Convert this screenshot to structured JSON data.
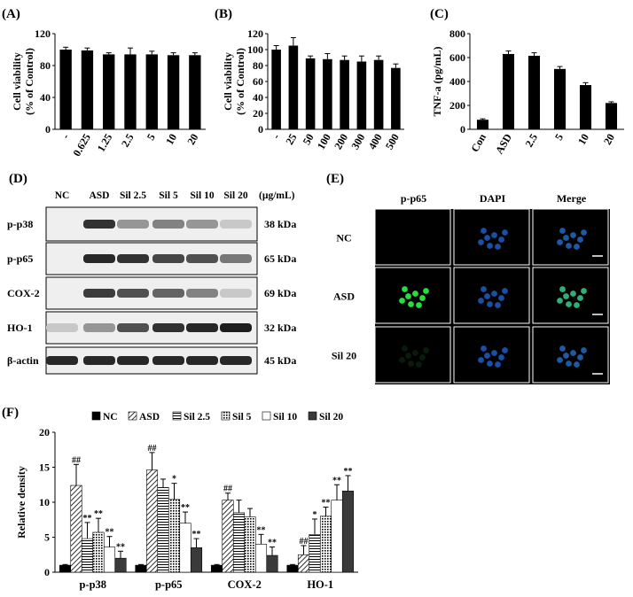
{
  "panel_labels": {
    "A": "(A)",
    "B": "(B)",
    "C": "(C)",
    "D": "(D)",
    "E": "(E)",
    "F": "(F)"
  },
  "chart_data": [
    {
      "panel": "(A)",
      "type": "bar",
      "ylabel": [
        "Cell viability",
        "(% of Control)"
      ],
      "ylim": [
        0,
        120
      ],
      "yticks": [
        0,
        40,
        80,
        120
      ],
      "categories": [
        "-",
        "0.625",
        "1.25",
        "2.5",
        "5",
        "10",
        "20"
      ],
      "values": [
        100,
        99,
        94,
        94,
        94,
        93,
        93
      ],
      "errors": [
        3,
        3,
        2,
        8,
        4,
        3,
        3
      ],
      "bar_color": "#000000"
    },
    {
      "panel": "(B)",
      "type": "bar",
      "ylabel": [
        "Cell viability",
        "(% of Control)"
      ],
      "ylim": [
        0,
        120
      ],
      "yticks": [
        0,
        20,
        40,
        60,
        80,
        100,
        120
      ],
      "categories": [
        "-",
        "25",
        "50",
        "100",
        "200",
        "300",
        "400",
        "500"
      ],
      "values": [
        100,
        105,
        89,
        88,
        87,
        85,
        87,
        77
      ],
      "errors": [
        5,
        10,
        3,
        7,
        5,
        7,
        5,
        5
      ],
      "bar_color": "#000000"
    },
    {
      "panel": "(C)",
      "type": "bar",
      "ylabel": [
        "TNF-a  (pg/mL)"
      ],
      "ylim": [
        0,
        800
      ],
      "yticks": [
        0,
        200,
        400,
        600,
        800
      ],
      "categories": [
        "Con",
        "ASD",
        "2.5",
        "5",
        "10",
        "20"
      ],
      "values": [
        80,
        630,
        615,
        505,
        370,
        220
      ],
      "errors": [
        8,
        25,
        25,
        20,
        20,
        10
      ],
      "bar_color": "#000000"
    },
    {
      "panel": "(F)",
      "type": "bar",
      "ylabel": "Relative density",
      "ylim": [
        0,
        20
      ],
      "yticks": [
        0,
        5,
        10,
        15,
        20
      ],
      "categories": [
        "p-p38",
        "p-p65",
        "COX-2",
        "HO-1"
      ],
      "series": [
        {
          "name": "NC",
          "pattern": "solid-black",
          "values": [
            1,
            1,
            1,
            1
          ],
          "errors": [
            0.1,
            0.1,
            0.1,
            0.1
          ]
        },
        {
          "name": "ASD",
          "pattern": "diagonal",
          "values": [
            12.4,
            14.6,
            10.3,
            2.5
          ],
          "errors": [
            3.0,
            2.5,
            1.0,
            1.3
          ]
        },
        {
          "name": "Sil 2.5",
          "pattern": "horizontal",
          "values": [
            4.8,
            12.1,
            8.5,
            5.4
          ],
          "errors": [
            2.3,
            1.2,
            1.8,
            2.2
          ]
        },
        {
          "name": "Sil 5",
          "pattern": "dots",
          "values": [
            5.7,
            10.4,
            7.9,
            8.0
          ],
          "errors": [
            2.0,
            2.3,
            1.2,
            1.3
          ]
        },
        {
          "name": "Sil 10",
          "pattern": "white",
          "values": [
            3.6,
            7.0,
            4.0,
            10.3
          ],
          "errors": [
            1.5,
            1.6,
            1.4,
            2.2
          ]
        },
        {
          "name": "Sil 20",
          "pattern": "solid-dark",
          "values": [
            2.0,
            3.5,
            2.4,
            11.6
          ],
          "errors": [
            1.0,
            1.3,
            1.2,
            2.2
          ]
        }
      ],
      "annotations": [
        [
          "",
          "##",
          "**",
          "**",
          "**",
          "**"
        ],
        [
          "",
          "##",
          "",
          "*",
          "**",
          "**"
        ],
        [
          "",
          "##",
          "",
          "",
          "**",
          "**"
        ],
        [
          "",
          "##",
          "*",
          "**",
          "**",
          "**"
        ]
      ]
    }
  ],
  "blot": {
    "lanes": [
      "NC",
      "ASD",
      "Sil 2.5",
      "Sil 5",
      "Sil 10",
      "Sil 20"
    ],
    "unit": "(µg/mL)",
    "rows": [
      {
        "protein": "p-p38",
        "size": "38 kDa",
        "intensity": [
          0.0,
          0.85,
          0.35,
          0.45,
          0.35,
          0.1
        ]
      },
      {
        "protein": "p-p65",
        "size": "65 kDa",
        "intensity": [
          0.0,
          0.9,
          0.85,
          0.75,
          0.7,
          0.5
        ]
      },
      {
        "protein": "COX-2",
        "size": "69 kDa",
        "intensity": [
          0.0,
          0.8,
          0.7,
          0.6,
          0.45,
          0.1
        ]
      },
      {
        "protein": "HO-1",
        "size": "32 kDa",
        "intensity": [
          0.1,
          0.35,
          0.7,
          0.85,
          0.9,
          0.95
        ]
      },
      {
        "protein": "β-actin",
        "size": "45 kDa",
        "intensity": [
          0.9,
          0.9,
          0.9,
          0.9,
          0.9,
          0.9
        ]
      }
    ]
  },
  "micro": {
    "columns": [
      "p-p65",
      "DAPI",
      "Merge"
    ],
    "rows": [
      "NC",
      "ASD",
      "Sil 20"
    ]
  }
}
